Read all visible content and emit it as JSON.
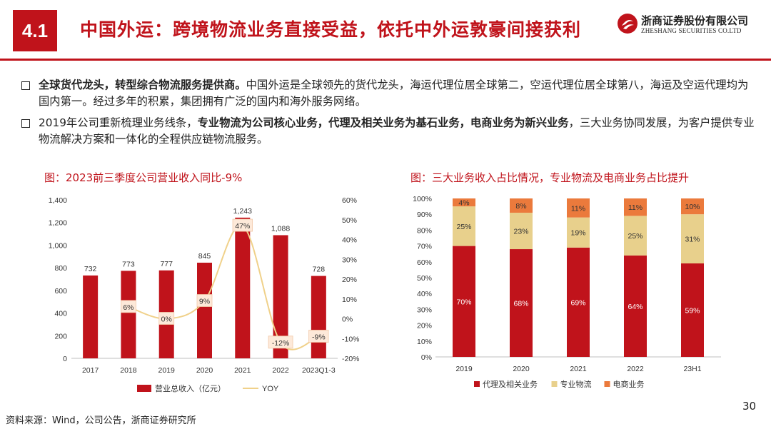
{
  "header": {
    "section_number": "4.1",
    "title": "中国外运：跨境物流业务直接受益，依托中外运敦豪间接获利",
    "logo_cn": "浙商证券股份有限公司",
    "logo_en": "ZHESHANG SECURITIES CO.LTD"
  },
  "bullets": [
    {
      "bold": "全球货代龙头，转型综合物流服务提供商。",
      "text": "中国外运是全球领先的货代龙头，海运代理位居全球第二，空运代理位居全球第八，海运及空运代理均为国内第一。经过多年的积累，集团拥有广泛的国内和海外服务网络。"
    },
    {
      "t1": "2019年公司重新梳理业务线条，",
      "b1": "专业物流为公司核心业务，代理及相关业务为基石业务，电商业务为新兴业务",
      "t2": "，三大业务协同发展，为客户提供专业物流解决方案和一体化的全程供应链物流服务。"
    }
  ],
  "chart_data": [
    {
      "type": "bar",
      "title": "图：2023前三季度公司营业收入同比-9%",
      "categories": [
        "2017",
        "2018",
        "2019",
        "2020",
        "2021",
        "2022",
        "2023Q1-3"
      ],
      "series": [
        {
          "name": "营业总收入（亿元）",
          "type": "bar",
          "axis": "left",
          "color": "#c0131b",
          "values": [
            732,
            773,
            777,
            845,
            1243,
            1088,
            728
          ],
          "labels": [
            "732",
            "773",
            "777",
            "845",
            "1,243",
            "1,088",
            "728"
          ]
        },
        {
          "name": "YOY",
          "type": "line",
          "axis": "right",
          "color": "#f0d18a",
          "values": [
            null,
            6,
            0,
            9,
            47,
            -12,
            -9
          ],
          "labels": [
            "",
            "6%",
            "0%",
            "9%",
            "47%",
            "-12%",
            "-9%"
          ]
        }
      ],
      "ylim": [
        0,
        1400
      ],
      "yticks": [
        "0",
        "200",
        "400",
        "600",
        "800",
        "1,000",
        "1,200",
        "1,400"
      ],
      "y2lim": [
        -20,
        60
      ],
      "y2ticks": [
        "-20%",
        "-10%",
        "0%",
        "10%",
        "20%",
        "30%",
        "40%",
        "50%",
        "60%"
      ],
      "legend": "bottom"
    },
    {
      "type": "bar",
      "stacked": true,
      "title": "图：三大业务收入占比情况，专业物流及电商业务占比提升",
      "categories": [
        "2019",
        "2020",
        "2021",
        "2022",
        "23H1"
      ],
      "series": [
        {
          "name": "代理及相关业务",
          "color": "#c0131b",
          "values": [
            70,
            68,
            69,
            64,
            59
          ]
        },
        {
          "name": "专业物流",
          "color": "#e8d08c",
          "values": [
            25,
            23,
            19,
            25,
            31
          ]
        },
        {
          "name": "电商业务",
          "color": "#eb7a3c",
          "values": [
            4,
            8,
            11,
            11,
            10
          ]
        }
      ],
      "ylim": [
        0,
        100
      ],
      "yticks": [
        "0%",
        "10%",
        "20%",
        "30%",
        "40%",
        "50%",
        "60%",
        "70%",
        "80%",
        "90%",
        "100%"
      ],
      "legend": "bottom"
    }
  ],
  "footer": {
    "source": "资料来源：Wind，公司公告，浙商证券研究所",
    "page_number": "30"
  }
}
